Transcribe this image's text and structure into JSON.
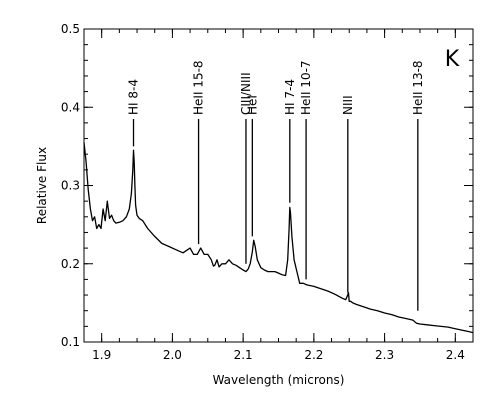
{
  "chart_data": {
    "type": "line",
    "title": "",
    "panel_label": "K",
    "xlabel": "Wavelength (microns)",
    "ylabel": "Relative Flux",
    "xlim": [
      1.875,
      2.425
    ],
    "ylim": [
      0.1,
      0.5
    ],
    "grid": false,
    "legend": "none",
    "xticks": [
      1.9,
      2.0,
      2.1,
      2.2,
      2.3,
      2.4
    ],
    "xtick_labels": [
      "1.9",
      "2.0",
      "2.1",
      "2.2",
      "2.3",
      "2.4"
    ],
    "yticks": [
      0.1,
      0.2,
      0.3,
      0.4,
      0.5
    ],
    "ytick_labels": [
      "0.1",
      "0.2",
      "0.3",
      "0.4",
      "0.5"
    ],
    "series": [
      {
        "x": [
          1.875,
          1.878,
          1.881,
          1.884,
          1.887,
          1.89,
          1.893,
          1.896,
          1.899,
          1.902,
          1.905,
          1.908,
          1.911,
          1.914,
          1.917,
          1.92,
          1.925,
          1.93,
          1.935,
          1.939,
          1.942,
          1.944,
          1.945,
          1.946,
          1.947,
          1.948,
          1.95,
          1.953,
          1.958,
          1.965,
          1.975,
          1.985,
          1.995,
          2.005,
          2.015,
          2.025,
          2.03,
          2.035,
          2.04,
          2.045,
          2.05,
          2.055,
          2.058,
          2.06,
          2.063,
          2.066,
          2.07,
          2.075,
          2.08,
          2.085,
          2.09,
          2.095,
          2.1,
          2.104,
          2.107,
          2.11,
          2.113,
          2.115,
          2.117,
          2.12,
          2.125,
          2.13,
          2.135,
          2.14,
          2.145,
          2.15,
          2.155,
          2.16,
          2.163,
          2.165,
          2.166,
          2.167,
          2.169,
          2.172,
          2.176,
          2.18,
          2.185,
          2.19,
          2.2,
          2.21,
          2.22,
          2.23,
          2.24,
          2.245,
          2.247,
          2.249,
          2.25,
          2.252,
          2.255,
          2.26,
          2.27,
          2.28,
          2.29,
          2.3,
          2.31,
          2.32,
          2.33,
          2.34,
          2.345,
          2.35,
          2.36,
          2.37,
          2.38,
          2.39,
          2.4,
          2.41,
          2.42,
          2.425
        ],
        "y": [
          0.355,
          0.33,
          0.295,
          0.27,
          0.255,
          0.26,
          0.245,
          0.25,
          0.245,
          0.27,
          0.255,
          0.28,
          0.258,
          0.262,
          0.255,
          0.252,
          0.253,
          0.255,
          0.26,
          0.27,
          0.29,
          0.32,
          0.345,
          0.33,
          0.3,
          0.275,
          0.262,
          0.258,
          0.255,
          0.245,
          0.235,
          0.226,
          0.222,
          0.218,
          0.214,
          0.22,
          0.212,
          0.212,
          0.22,
          0.212,
          0.212,
          0.205,
          0.197,
          0.198,
          0.205,
          0.196,
          0.2,
          0.2,
          0.205,
          0.2,
          0.198,
          0.195,
          0.192,
          0.19,
          0.193,
          0.2,
          0.215,
          0.23,
          0.222,
          0.205,
          0.195,
          0.192,
          0.19,
          0.19,
          0.19,
          0.188,
          0.186,
          0.185,
          0.205,
          0.245,
          0.272,
          0.265,
          0.235,
          0.205,
          0.19,
          0.175,
          0.175,
          0.173,
          0.171,
          0.168,
          0.165,
          0.161,
          0.156,
          0.154,
          0.158,
          0.163,
          0.152,
          0.152,
          0.15,
          0.148,
          0.145,
          0.142,
          0.14,
          0.137,
          0.135,
          0.132,
          0.13,
          0.128,
          0.124,
          0.123,
          0.122,
          0.121,
          0.12,
          0.119,
          0.117,
          0.115,
          0.113,
          0.112
        ]
      }
    ],
    "line_markers": [
      {
        "label": "HI 8-4",
        "x": 1.945,
        "y_top": 0.385,
        "y_bottom": 0.35
      },
      {
        "label": "HeII 15-8",
        "x": 2.037,
        "y_top": 0.385,
        "y_bottom": 0.225
      },
      {
        "label": "CIII/NIII",
        "x": 2.104,
        "y_top": 0.385,
        "y_bottom": 0.2
      },
      {
        "label": "HeI",
        "x": 2.113,
        "y_top": 0.385,
        "y_bottom": 0.235
      },
      {
        "label": "HI 7-4",
        "x": 2.166,
        "y_top": 0.385,
        "y_bottom": 0.278
      },
      {
        "label": "HeII 10-7",
        "x": 2.189,
        "y_top": 0.385,
        "y_bottom": 0.18
      },
      {
        "label": "NIII",
        "x": 2.248,
        "y_top": 0.385,
        "y_bottom": 0.163
      },
      {
        "label": "HeII 13-8",
        "x": 2.347,
        "y_top": 0.385,
        "y_bottom": 0.14
      }
    ]
  }
}
